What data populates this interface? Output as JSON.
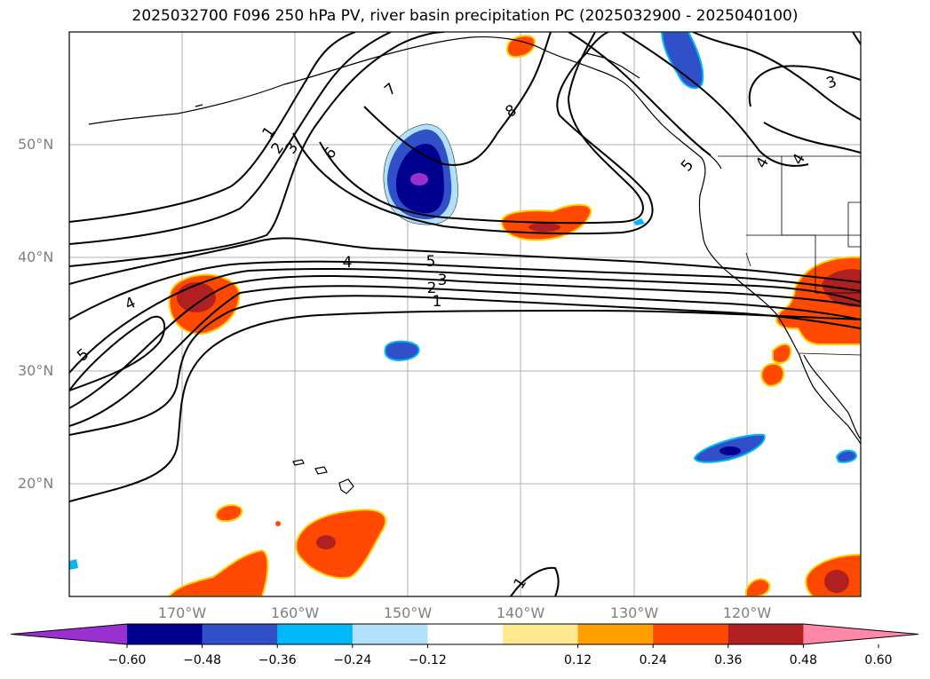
{
  "title": "2025032700 F096 250 hPa PV, river basin precipitation PC (2025032900 - 2025040100)",
  "lat_labels": [
    "50°N",
    "40°N",
    "30°N",
    "20°N"
  ],
  "lon_labels": [
    "170°W",
    "160°W",
    "150°W",
    "140°W",
    "130°W",
    "120°W"
  ],
  "colorbar": {
    "colors": [
      "#9b30d0",
      "#000090",
      "#3050c8",
      "#00b8f8",
      "#b0e0fa",
      "#ffffff",
      "#ffe890",
      "#ffa000",
      "#ff4800",
      "#b02020",
      "#ff88a8"
    ],
    "ticks": [
      "−0.60",
      "−0.48",
      "−0.36",
      "−0.24",
      "−0.12",
      "0.12",
      "0.24",
      "0.36",
      "0.48",
      "0.60"
    ]
  },
  "contour_labels": [
    "1",
    "2",
    "3",
    "4",
    "5",
    "6",
    "7",
    "8",
    "1",
    "2",
    "3",
    "4",
    "5",
    "4",
    "5",
    "3",
    "3",
    "4",
    "4",
    "1"
  ]
}
